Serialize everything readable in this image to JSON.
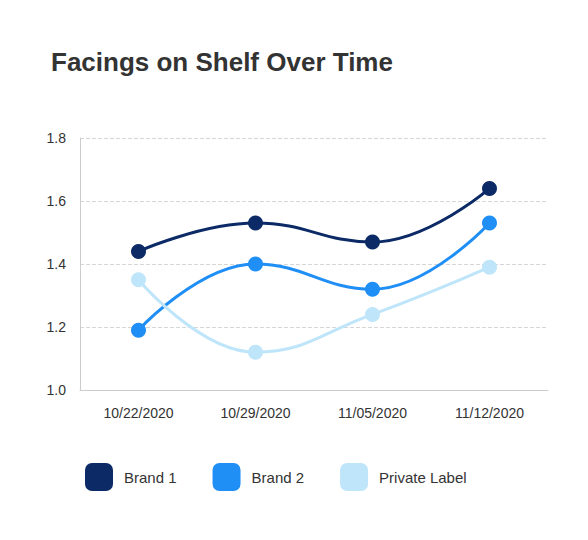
{
  "chart_data": {
    "type": "line",
    "title": "Facings on Shelf Over Time",
    "categories": [
      "10/22/2020",
      "10/29/2020",
      "11/05/2020",
      "11/12/2020"
    ],
    "series": [
      {
        "name": "Brand 1",
        "color": "#0b2a66",
        "values": [
          1.44,
          1.53,
          1.47,
          1.64
        ]
      },
      {
        "name": "Brand 2",
        "color": "#1f8ef5",
        "values": [
          1.19,
          1.4,
          1.32,
          1.53
        ]
      },
      {
        "name": "Private Label",
        "color": "#bfe5fa",
        "values": [
          1.35,
          1.12,
          1.24,
          1.39
        ]
      }
    ],
    "ylim": [
      1.0,
      1.8
    ],
    "yticks": [
      {
        "value": 1.0,
        "label": "1.0"
      },
      {
        "value": 1.2,
        "label": "1.2"
      },
      {
        "value": 1.4,
        "label": "1.4"
      },
      {
        "value": 1.6,
        "label": "1.6"
      },
      {
        "value": 1.8,
        "label": "1.8"
      }
    ],
    "grid": true,
    "legend": "bottom",
    "marker": "circle"
  }
}
